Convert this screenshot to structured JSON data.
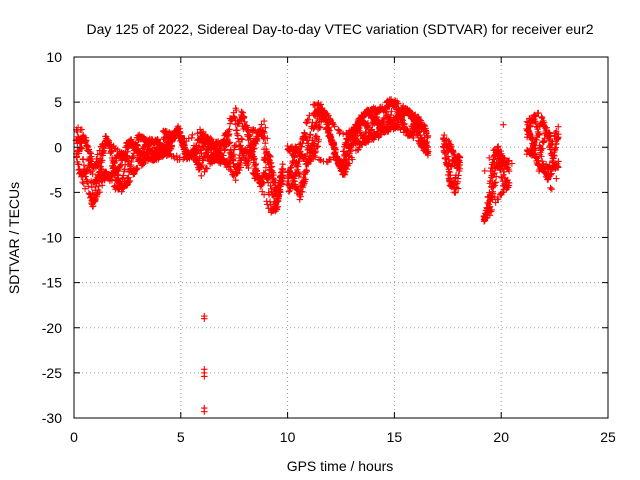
{
  "chart_data": {
    "type": "scatter",
    "title": "Day 125 of 2022, Sidereal Day-to-day VTEC variation (SDTVAR) for receiver eur2",
    "xlabel": "GPS time / hours",
    "ylabel": "SDTVAR / TECUs",
    "xlim": [
      0,
      25
    ],
    "ylim": [
      -30,
      10
    ],
    "xticks": [
      0,
      5,
      10,
      15,
      20,
      25
    ],
    "yticks": [
      -30,
      -25,
      -20,
      -15,
      -10,
      -5,
      0,
      5,
      10
    ],
    "grid": true,
    "marker": "plus",
    "color": "#ff0000",
    "series": [
      {
        "name": "SDTVAR",
        "note": "Dense band of '+' markers; each profile gives approximate [hour, min TECU, max TECU] envelope (one track per entry)",
        "tracks": [
          {
            "profile": [
              [
                0.1,
                -2.0,
                2.5
              ],
              [
                0.4,
                -4.0,
                2.0
              ],
              [
                0.7,
                -5.5,
                0.5
              ],
              [
                0.9,
                -6.8,
                -2.0
              ],
              [
                1.2,
                -5.0,
                0.0
              ],
              [
                1.5,
                -3.5,
                1.5
              ],
              [
                1.8,
                -4.5,
                0.5
              ],
              [
                2.2,
                -5.0,
                -0.5
              ],
              [
                2.6,
                -4.0,
                1.0
              ],
              [
                3.0,
                -2.5,
                1.5
              ],
              [
                3.4,
                -1.5,
                1.0
              ],
              [
                3.8,
                -1.5,
                1.0
              ],
              [
                4.2,
                -1.0,
                2.0
              ],
              [
                4.6,
                -1.0,
                1.5
              ],
              [
                4.9,
                -1.5,
                2.5
              ],
              [
                5.2,
                -1.5,
                1.0
              ],
              [
                5.6,
                -1.0,
                1.5
              ],
              [
                5.9,
                -3.5,
                2.0
              ],
              [
                6.2,
                -2.5,
                1.5
              ],
              [
                6.6,
                -1.5,
                0.5
              ],
              [
                7.0,
                -2.0,
                1.0
              ],
              [
                7.3,
                -2.5,
                3.5
              ],
              [
                7.6,
                -4.0,
                4.5
              ],
              [
                7.9,
                -1.5,
                4.0
              ],
              [
                8.2,
                -2.5,
                2.0
              ],
              [
                8.6,
                -4.0,
                2.0
              ],
              [
                8.9,
                -5.5,
                3.0
              ],
              [
                9.2,
                -7.5,
                -1.0
              ],
              [
                9.5,
                -7.0,
                -5.0
              ],
              [
                9.8,
                -3.0,
                -1.5
              ]
            ]
          },
          {
            "profile": [
              [
                10.0,
                -5.5,
                0.5
              ],
              [
                10.3,
                -4.5,
                0.0
              ],
              [
                10.6,
                -6.0,
                0.5
              ],
              [
                10.9,
                -3.0,
                3.0
              ],
              [
                11.2,
                -1.0,
                5.0
              ],
              [
                11.5,
                -1.5,
                5.0
              ],
              [
                11.8,
                -2.0,
                4.0
              ],
              [
                12.2,
                -1.0,
                2.5
              ],
              [
                12.6,
                -3.5,
                1.5
              ],
              [
                13.0,
                -1.5,
                2.0
              ],
              [
                13.4,
                0.0,
                3.5
              ],
              [
                13.8,
                0.5,
                4.5
              ],
              [
                14.2,
                1.0,
                4.5
              ],
              [
                14.6,
                1.5,
                5.0
              ],
              [
                14.9,
                2.0,
                5.5
              ],
              [
                15.2,
                2.0,
                5.0
              ],
              [
                15.5,
                1.5,
                4.5
              ],
              [
                15.8,
                1.0,
                4.0
              ],
              [
                16.1,
                0.5,
                3.5
              ],
              [
                16.4,
                -0.5,
                2.5
              ],
              [
                16.6,
                -1.0,
                1.5
              ]
            ]
          },
          {
            "profile": [
              [
                17.3,
                -0.5,
                1.5
              ],
              [
                17.6,
                -4.5,
                0.5
              ],
              [
                17.9,
                -5.5,
                -1.0
              ],
              [
                18.1,
                -4.0,
                -0.5
              ]
            ]
          },
          {
            "profile": [
              [
                19.2,
                -8.5,
                -2.5
              ],
              [
                19.5,
                -7.5,
                -0.5
              ],
              [
                19.8,
                -6.0,
                0.5
              ],
              [
                20.1,
                -5.0,
                -1.0
              ],
              [
                20.4,
                -4.5,
                -1.5
              ]
            ]
          },
          {
            "profile": [
              [
                21.2,
                -1.0,
                3.0
              ],
              [
                21.5,
                -1.0,
                3.5
              ],
              [
                21.8,
                -3.0,
                4.0
              ],
              [
                22.1,
                -3.5,
                2.5
              ],
              [
                22.4,
                -5.0,
                1.0
              ],
              [
                22.7,
                -2.5,
                2.5
              ]
            ]
          }
        ],
        "isolated_points": [
          [
            6.1,
            -18.7
          ],
          [
            6.1,
            -19.0
          ],
          [
            6.1,
            -24.6
          ],
          [
            6.1,
            -25.0
          ],
          [
            6.1,
            -25.4
          ],
          [
            6.1,
            -28.9
          ],
          [
            6.1,
            -29.3
          ],
          [
            20.1,
            2.5
          ],
          [
            20.5,
            -1.8
          ],
          [
            19.7,
            -5.5
          ],
          [
            19.6,
            -5.8
          ]
        ]
      }
    ]
  }
}
